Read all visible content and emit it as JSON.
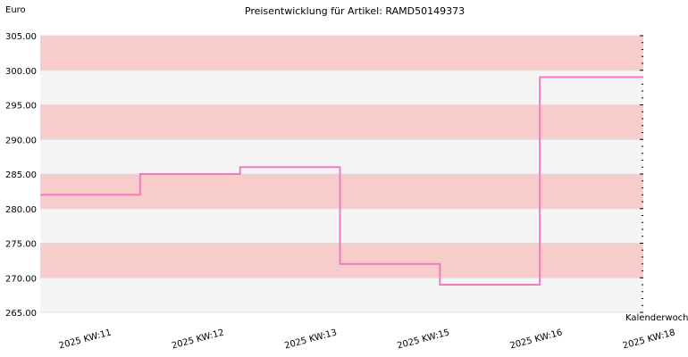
{
  "chart_data": {
    "type": "line",
    "step": true,
    "title": "Preisentwicklung für Artikel: RAMD50149373",
    "ylabel": "Euro",
    "xlabel": "Kalenderwoche",
    "ylim": [
      265,
      305
    ],
    "yticks": [
      "265.00",
      "270.00",
      "275.00",
      "280.00",
      "285.00",
      "290.00",
      "295.00",
      "300.00",
      "305.00"
    ],
    "categories": [
      "2025 KW:11",
      "2025 KW:12",
      "2025 KW:13",
      "2025 KW:15",
      "2025 KW:16",
      "2025 KW:18"
    ],
    "series": [
      {
        "values": [
          282,
          285,
          286,
          272,
          269,
          299
        ]
      }
    ],
    "grid": true,
    "band_colors": [
      "#f9cccc",
      "#f5f5f5"
    ],
    "line_color": "#f07cbd"
  }
}
